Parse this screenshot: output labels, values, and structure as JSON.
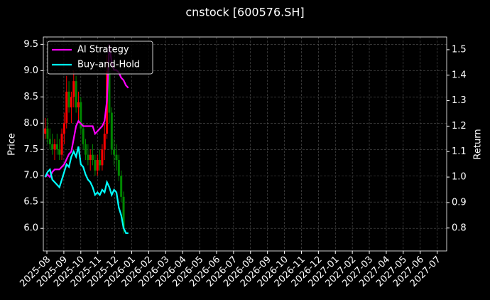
{
  "chart_data": {
    "type": "candlestick",
    "title": "cnstock [600576.SH]",
    "y_label": "Price",
    "y2_label": "Return",
    "x": [
      -0.1,
      0.04,
      0.18,
      0.32,
      0.46,
      0.6,
      0.74,
      0.88,
      1.02,
      1.16,
      1.3,
      1.44,
      1.58,
      1.72,
      1.86,
      2.0,
      2.14,
      2.28,
      2.42,
      2.56,
      2.7,
      2.84,
      2.98,
      3.12,
      3.26,
      3.4,
      3.54,
      3.68,
      3.82,
      3.96,
      4.1,
      4.24,
      4.38,
      4.52,
      4.66,
      4.8
    ],
    "open": [
      7.8,
      7.9,
      7.7,
      7.6,
      7.5,
      7.6,
      7.5,
      7.4,
      7.8,
      8.0,
      8.6,
      8.3,
      8.5,
      8.8,
      8.3,
      8.4,
      7.9,
      7.6,
      7.4,
      7.3,
      7.4,
      7.3,
      7.1,
      7.3,
      7.2,
      7.5,
      7.8,
      9.0,
      8.2,
      7.5,
      7.4,
      7.3,
      7.0,
      6.6,
      null,
      null
    ],
    "high": [
      8.1,
      8.1,
      7.9,
      7.8,
      7.7,
      7.8,
      7.7,
      7.9,
      8.2,
      8.9,
      8.8,
      8.6,
      9.0,
      8.9,
      8.6,
      8.5,
      8.0,
      7.7,
      7.6,
      7.5,
      7.6,
      7.4,
      7.4,
      7.5,
      7.6,
      8.0,
      9.3,
      9.2,
      8.3,
      7.7,
      7.6,
      7.4,
      7.1,
      6.7,
      null,
      null
    ],
    "low": [
      7.7,
      7.6,
      7.5,
      7.4,
      7.3,
      7.4,
      7.3,
      7.3,
      7.6,
      7.9,
      8.2,
      8.0,
      8.3,
      8.2,
      8.0,
      7.8,
      7.5,
      7.3,
      7.2,
      7.1,
      7.2,
      7.0,
      7.0,
      7.1,
      7.1,
      7.3,
      7.7,
      8.0,
      7.4,
      7.2,
      7.1,
      6.9,
      6.5,
      5.9,
      null,
      null
    ],
    "close": [
      7.9,
      7.7,
      7.6,
      7.5,
      7.6,
      7.5,
      7.4,
      7.8,
      8.0,
      8.6,
      8.3,
      8.5,
      8.8,
      8.3,
      8.4,
      7.9,
      7.6,
      7.4,
      7.3,
      7.4,
      7.3,
      7.1,
      7.3,
      7.2,
      7.5,
      7.8,
      9.0,
      8.2,
      7.5,
      7.4,
      7.3,
      7.0,
      6.6,
      6.0,
      null,
      null
    ],
    "up_color": "#ff0000",
    "down_color": "#008800",
    "series": [
      {
        "name": "AI Strategy",
        "color": "#ff00ff",
        "axis": "y2",
        "values": [
          1.0,
          1.01,
          1.0,
          1.02,
          1.03,
          1.03,
          1.03,
          1.04,
          1.05,
          1.07,
          1.09,
          1.1,
          1.15,
          1.2,
          1.22,
          1.21,
          1.2,
          1.2,
          1.2,
          1.2,
          1.2,
          1.17,
          1.18,
          1.19,
          1.2,
          1.22,
          1.3,
          1.52,
          1.45,
          1.42,
          1.42,
          1.41,
          1.39,
          1.38,
          1.36,
          1.35
        ]
      },
      {
        "name": "Buy-and-Hold",
        "color": "#00ffff",
        "axis": "y2",
        "values": [
          1.0,
          1.02,
          1.03,
          0.99,
          0.98,
          0.97,
          0.96,
          0.99,
          1.02,
          1.05,
          1.04,
          1.08,
          1.1,
          1.08,
          1.12,
          1.05,
          1.04,
          1.01,
          0.99,
          0.98,
          0.96,
          0.93,
          0.94,
          0.93,
          0.95,
          0.94,
          0.98,
          0.96,
          0.93,
          0.95,
          0.94,
          0.88,
          0.85,
          0.8,
          0.78,
          0.78
        ]
      }
    ],
    "xlim": [
      -0.21,
      23.56
    ],
    "xticks": [
      {
        "value": 0,
        "label": "2025-08"
      },
      {
        "value": 1,
        "label": "2025-09"
      },
      {
        "value": 2,
        "label": "2025-10"
      },
      {
        "value": 3,
        "label": "2025-11"
      },
      {
        "value": 4,
        "label": "2025-12"
      },
      {
        "value": 5,
        "label": "2026-01"
      },
      {
        "value": 6,
        "label": "2026-02"
      },
      {
        "value": 7,
        "label": "2026-03"
      },
      {
        "value": 8,
        "label": "2026-04"
      },
      {
        "value": 9,
        "label": "2026-05"
      },
      {
        "value": 10,
        "label": "2026-06"
      },
      {
        "value": 11,
        "label": "2026-07"
      },
      {
        "value": 12,
        "label": "2026-08"
      },
      {
        "value": 13,
        "label": "2026-09"
      },
      {
        "value": 14,
        "label": "2026-10"
      },
      {
        "value": 15,
        "label": "2026-11"
      },
      {
        "value": 16,
        "label": "2026-12"
      },
      {
        "value": 17,
        "label": "2027-01"
      },
      {
        "value": 18,
        "label": "2027-02"
      },
      {
        "value": 19,
        "label": "2027-03"
      },
      {
        "value": 20,
        "label": "2027-04"
      },
      {
        "value": 21,
        "label": "2027-05"
      },
      {
        "value": 22,
        "label": "2027-06"
      },
      {
        "value": 23,
        "label": "2027-07"
      }
    ],
    "ylim": [
      5.57,
      9.64
    ],
    "yticks": [
      {
        "value": 6,
        "label": "6.0"
      },
      6.5,
      {
        "value": 7,
        "label": "7.0"
      },
      7.5,
      {
        "value": 8,
        "label": "8.0"
      },
      8.5,
      {
        "value": 9,
        "label": "9.0"
      },
      9.5
    ],
    "y2lim": [
      0.71,
      1.55
    ],
    "y2ticks": [
      0.8,
      0.9,
      {
        "value": 1,
        "label": "1.0"
      },
      1.1,
      1.2,
      1.3,
      1.4,
      1.5
    ],
    "grid": true,
    "legend": "upper left"
  }
}
